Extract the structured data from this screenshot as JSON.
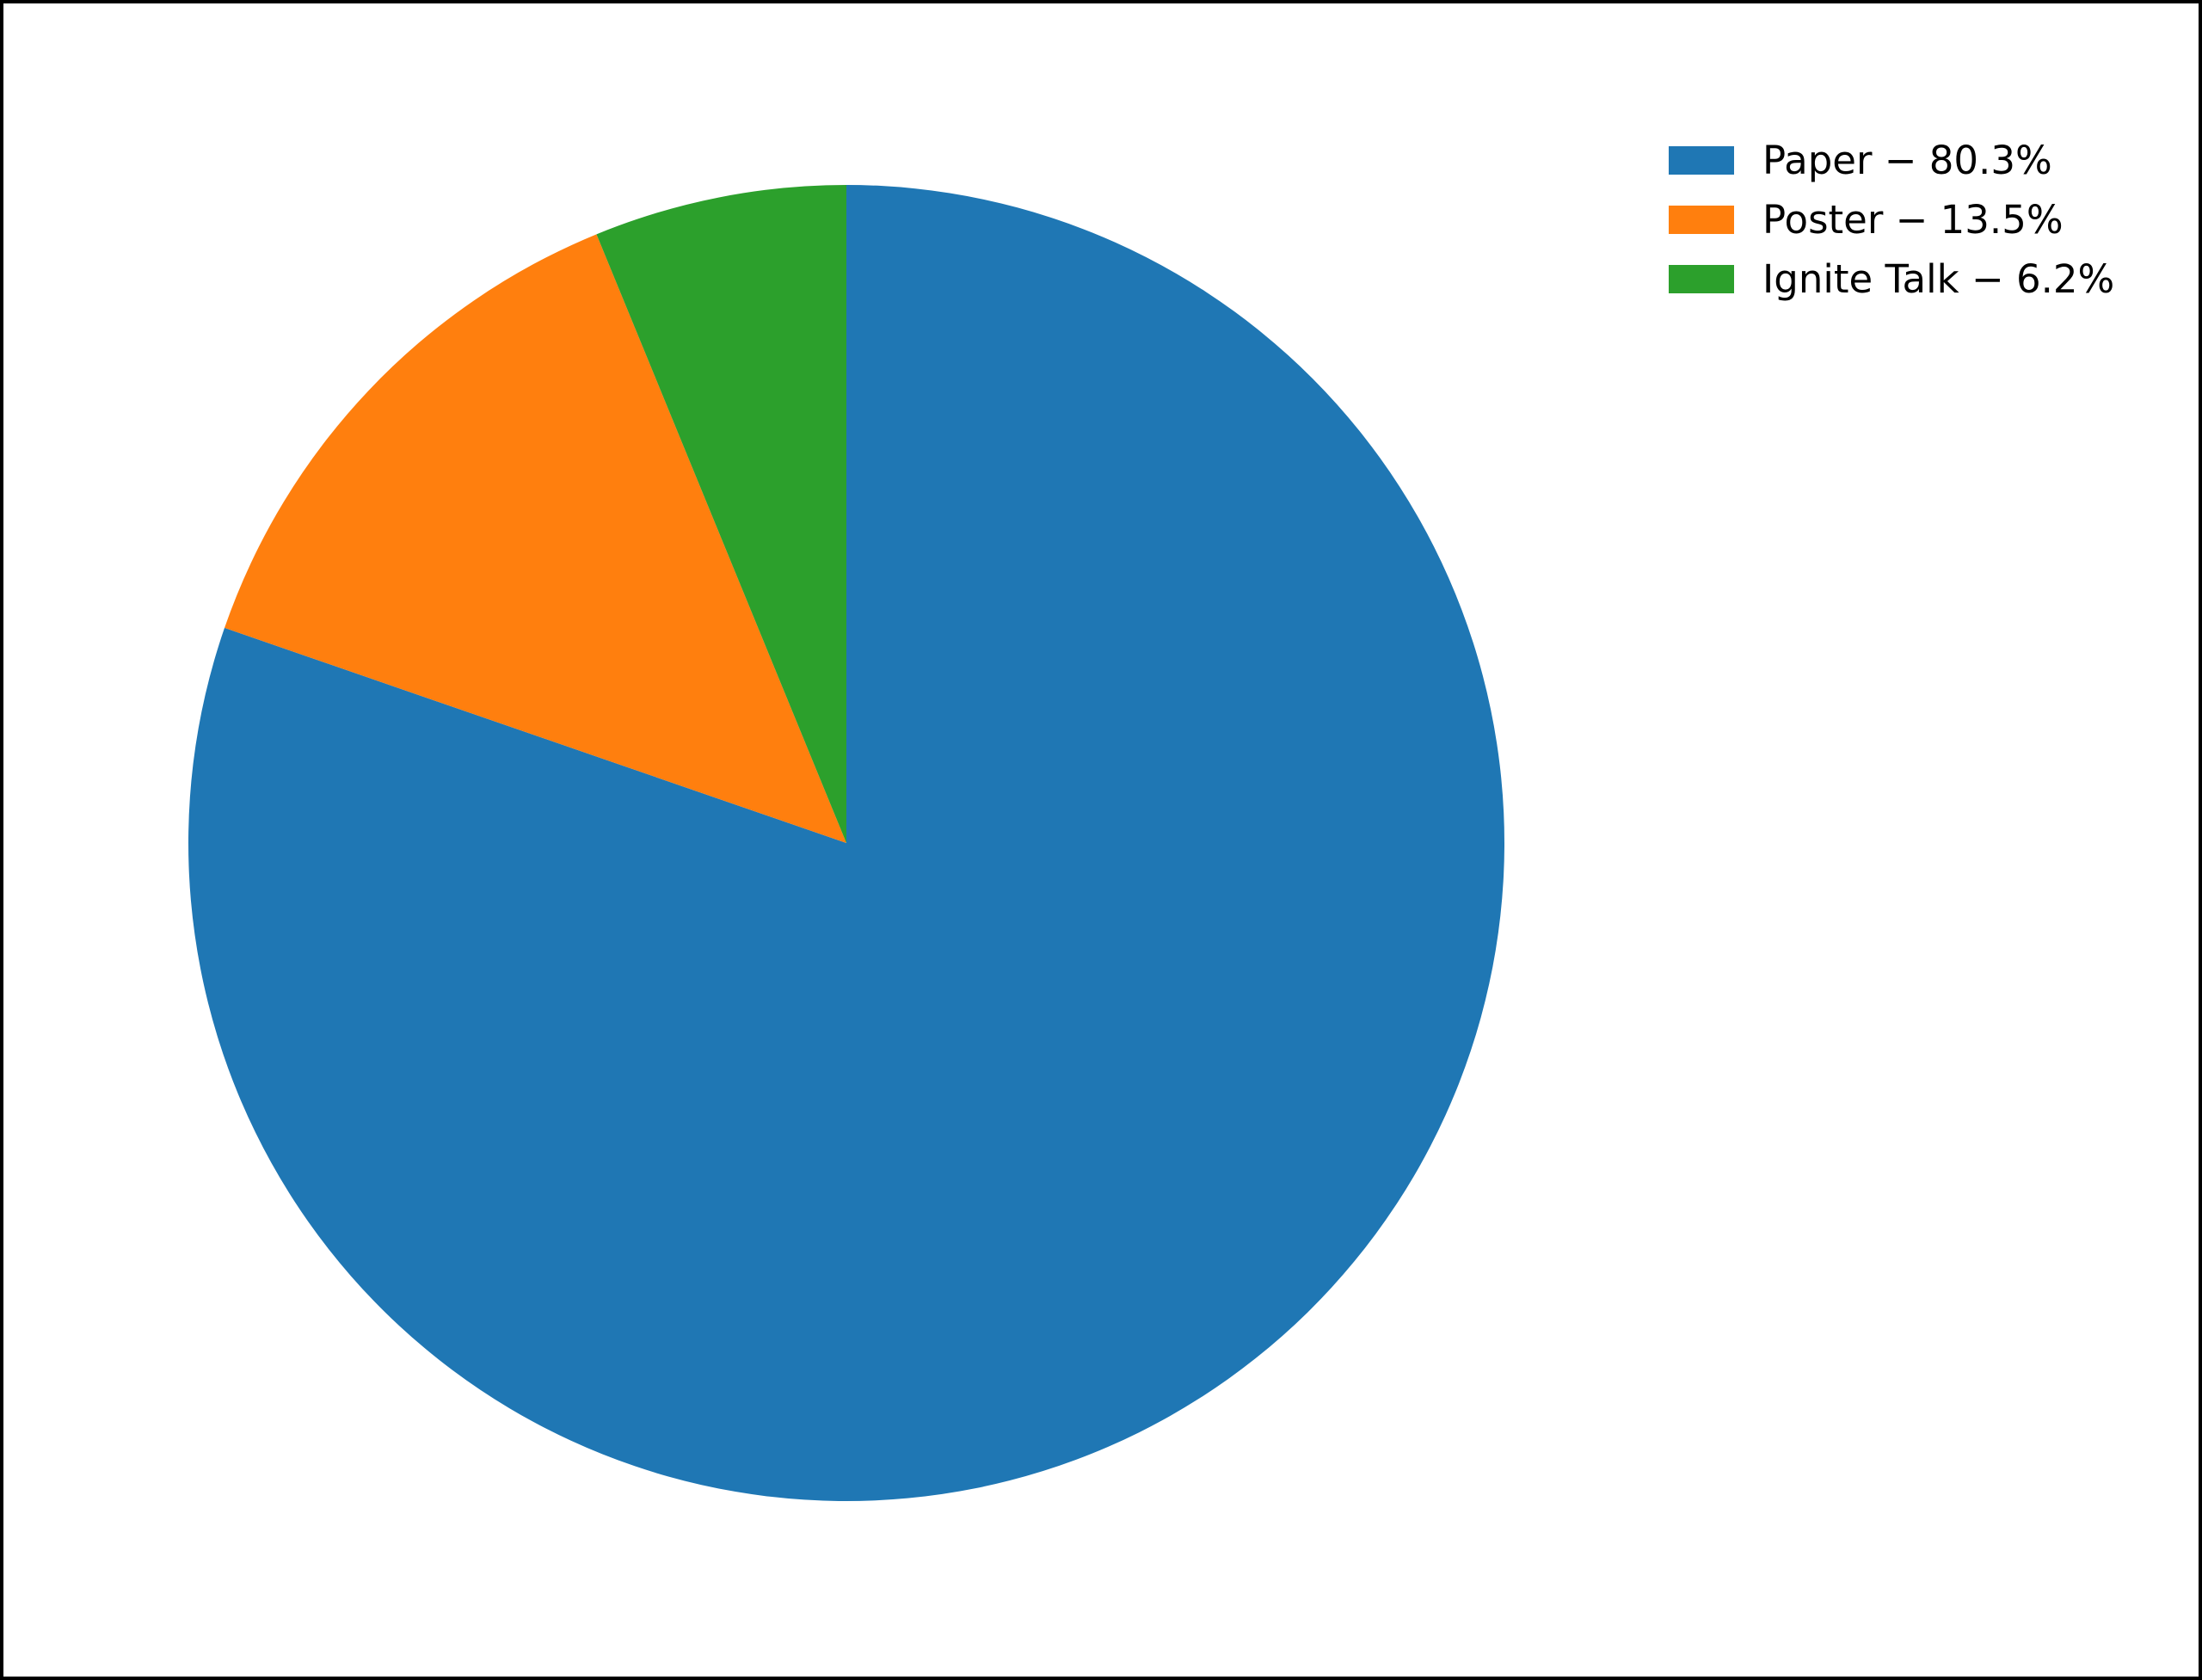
{
  "figure": {
    "background": "#ffffff",
    "frame_color": "#000000"
  },
  "chart_data": {
    "type": "pie",
    "labels": [
      "Paper",
      "Poster",
      "Ignite Talk"
    ],
    "values": [
      80.3,
      13.5,
      6.2
    ],
    "unit": "%",
    "colors": [
      "#1f77b4",
      "#ff7f0e",
      "#2ca02c"
    ],
    "start_angle": "top",
    "direction": "clockwise",
    "title": "",
    "legend": {
      "position": "upper right",
      "frame": false,
      "entries": [
        {
          "label": "Paper − 80.3%",
          "color": "#1f77b4"
        },
        {
          "label": "Poster − 13.5%",
          "color": "#ff7f0e"
        },
        {
          "label": "Ignite Talk − 6.2%",
          "color": "#2ca02c"
        }
      ]
    }
  }
}
